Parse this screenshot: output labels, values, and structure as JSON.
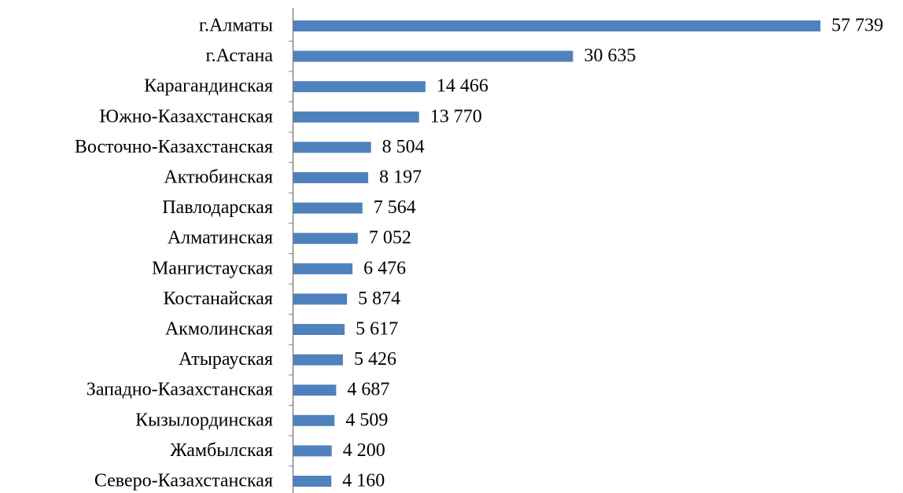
{
  "chart_data": {
    "type": "bar",
    "orientation": "horizontal",
    "color": "#4f81bd",
    "categories": [
      "г.Алматы",
      "г.Астана",
      "Карагандинская",
      "Южно-Казахстанская",
      "Восточно-Казахстанская",
      "Актюбинская",
      "Павлодарская",
      "Алматинская",
      "Мангистауская",
      "Костанайская",
      "Акмолинская",
      "Атырауская",
      "Западно-Казахстанская",
      "Кызылординская",
      "Жамбылская",
      "Северо-Казахстанская"
    ],
    "values": [
      57739,
      30635,
      14466,
      13770,
      8504,
      8197,
      7564,
      7052,
      6476,
      5874,
      5617,
      5426,
      4687,
      4509,
      4200,
      4160
    ],
    "value_labels": [
      "57 739",
      "30 635",
      "14 466",
      "13 770",
      "8 504",
      "8 197",
      "7 564",
      "7 052",
      "6 476",
      "5 874",
      "5 617",
      "5 426",
      "4 687",
      "4 509",
      "4 200",
      "4 160"
    ]
  }
}
